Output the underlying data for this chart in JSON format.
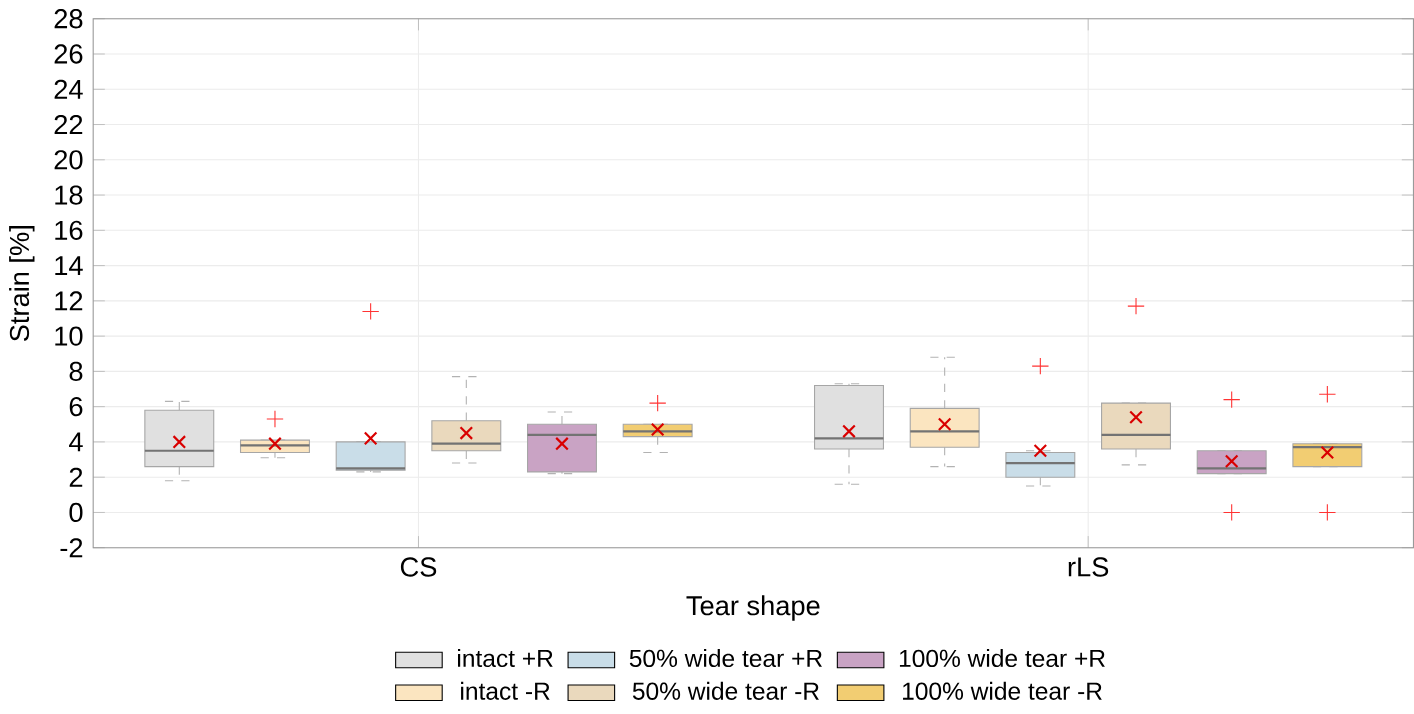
{
  "chart_data": {
    "type": "box",
    "xlabel": "Tear shape",
    "ylabel": "Strain [%]",
    "categories": [
      "CS",
      "rLS"
    ],
    "ylim": [
      -2,
      28
    ],
    "yticks": [
      -2,
      0,
      2,
      4,
      6,
      8,
      10,
      12,
      14,
      16,
      18,
      20,
      22,
      24,
      26,
      28
    ],
    "grid": true,
    "legend": "bottom",
    "series": [
      {
        "name": "intact +R",
        "color": "#e0e0e0",
        "boxes": [
          {
            "low": 1.8,
            "q1": 2.6,
            "median": 3.5,
            "q3": 5.8,
            "high": 6.3,
            "mean": 4.0
          },
          {
            "low": 1.6,
            "q1": 3.6,
            "median": 4.2,
            "q3": 7.2,
            "high": 7.3,
            "mean": 4.6
          }
        ]
      },
      {
        "name": "intact -R",
        "color": "#fbe5c0",
        "boxes": [
          {
            "low": 3.1,
            "q1": 3.4,
            "median": 3.8,
            "q3": 4.1,
            "high": 4.1,
            "mean": 3.9,
            "outliers": [
              5.3
            ]
          },
          {
            "low": 2.6,
            "q1": 3.7,
            "median": 4.6,
            "q3": 5.9,
            "high": 8.8,
            "mean": 5.0
          }
        ]
      },
      {
        "name": "50% wide tear +R",
        "color": "#c9dde8",
        "boxes": [
          {
            "low": 2.3,
            "q1": 2.4,
            "median": 2.5,
            "q3": 4.0,
            "high": 4.0,
            "mean": 4.2,
            "outliers": [
              11.4
            ]
          },
          {
            "low": 1.5,
            "q1": 2.0,
            "median": 2.8,
            "q3": 3.4,
            "high": 3.5,
            "mean": 3.5,
            "outliers": [
              8.3
            ]
          }
        ]
      },
      {
        "name": "50% wide tear -R",
        "color": "#ead9bd",
        "boxes": [
          {
            "low": 2.8,
            "q1": 3.5,
            "median": 3.9,
            "q3": 5.2,
            "high": 7.7,
            "mean": 4.5
          },
          {
            "low": 2.7,
            "q1": 3.6,
            "median": 4.4,
            "q3": 6.2,
            "high": 6.2,
            "mean": 5.4,
            "outliers": [
              11.7
            ]
          }
        ]
      },
      {
        "name": "100% wide tear +R",
        "color": "#c9a3c4",
        "boxes": [
          {
            "low": 2.2,
            "q1": 2.3,
            "median": 4.4,
            "q3": 5.0,
            "high": 5.7,
            "mean": 3.9
          },
          {
            "low": 2.2,
            "q1": 2.2,
            "median": 2.5,
            "q3": 3.5,
            "high": 3.5,
            "mean": 2.9,
            "outliers": [
              6.4,
              0
            ]
          }
        ]
      },
      {
        "name": "100% wide tear -R",
        "color": "#f2cd72",
        "boxes": [
          {
            "low": 3.4,
            "q1": 4.3,
            "median": 4.6,
            "q3": 5.0,
            "high": 5.0,
            "mean": 4.7,
            "outliers": [
              6.2
            ]
          },
          {
            "low": 2.6,
            "q1": 2.6,
            "median": 3.7,
            "q3": 3.9,
            "high": 3.9,
            "mean": 3.4,
            "outliers": [
              6.7,
              0
            ]
          }
        ]
      }
    ]
  }
}
